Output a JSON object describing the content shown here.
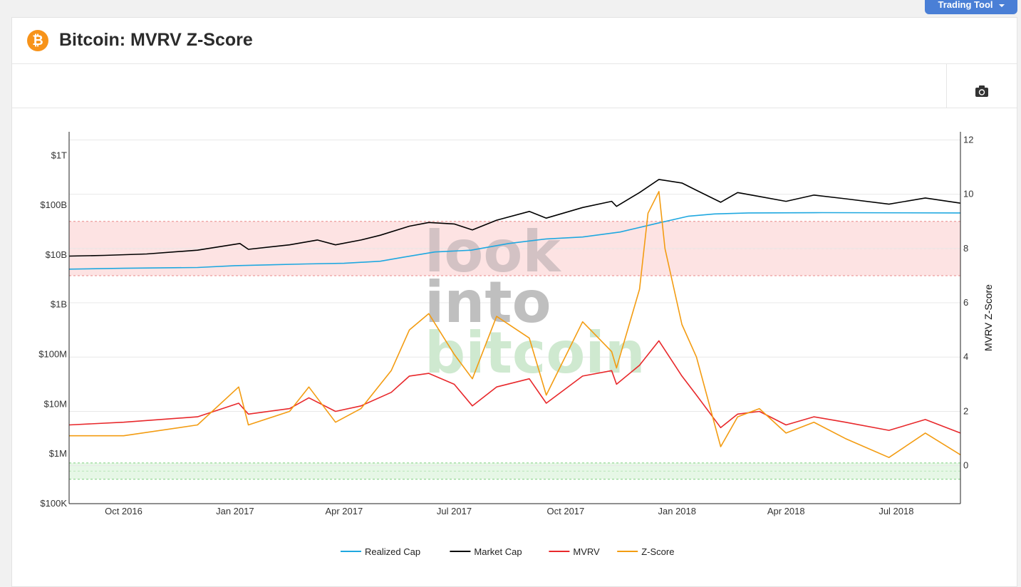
{
  "toolbar": {
    "trading_tool_label": "Trading Tool"
  },
  "header": {
    "title": "Bitcoin: MVRV Z-Score",
    "icon": "bitcoin-icon"
  },
  "watermark": {
    "line1": "look",
    "line2": "into",
    "line3": "bitcoin"
  },
  "colors": {
    "realized_cap": "#1fa8e0",
    "market_cap": "#000000",
    "mvrv": "#e8282b",
    "zscore": "#f39c12",
    "red_band": "#fde3e3",
    "green_band": "#e6f7e6"
  },
  "chart_data": {
    "type": "line",
    "x_range": [
      "2016-08-17",
      "2018-08-23"
    ],
    "x_ticks": [
      {
        "date": "2016-10-01",
        "label": "Oct 2016"
      },
      {
        "date": "2017-01-01",
        "label": "Jan 2017"
      },
      {
        "date": "2017-04-01",
        "label": "Apr 2017"
      },
      {
        "date": "2017-07-01",
        "label": "Jul 2017"
      },
      {
        "date": "2017-10-01",
        "label": "Oct 2017"
      },
      {
        "date": "2018-01-01",
        "label": "Jan 2018"
      },
      {
        "date": "2018-04-01",
        "label": "Apr 2018"
      },
      {
        "date": "2018-07-01",
        "label": "Jul 2018"
      }
    ],
    "y_left": {
      "scale": "log",
      "range": [
        100000,
        3000000000000
      ],
      "ticks": [
        {
          "value": 100000,
          "label": "$100K"
        },
        {
          "value": 1000000,
          "label": "$1M"
        },
        {
          "value": 10000000,
          "label": "$10M"
        },
        {
          "value": 100000000,
          "label": "$100M"
        },
        {
          "value": 1000000000,
          "label": "$1B"
        },
        {
          "value": 10000000000,
          "label": "$10B"
        },
        {
          "value": 100000000000,
          "label": "$100B"
        },
        {
          "value": 1000000000000,
          "label": "$1T"
        }
      ]
    },
    "y_right": {
      "title": "MVRV Z-Score",
      "range": [
        -1.4,
        12.3
      ],
      "ticks": [
        0,
        2,
        4,
        6,
        8,
        10,
        12
      ]
    },
    "bands": [
      {
        "axis": "right",
        "from": 7,
        "to": 9,
        "color": "red"
      },
      {
        "axis": "right",
        "from": -0.5,
        "to": 0.1,
        "color": "green"
      }
    ],
    "legend_position": "bottom-center",
    "series": [
      {
        "name": "Realized Cap",
        "axis": "left",
        "color_key": "realized_cap",
        "points": [
          [
            "2016-08-17",
            5200000000.0
          ],
          [
            "2016-10-01",
            5400000000.0
          ],
          [
            "2016-12-01",
            5600000000.0
          ],
          [
            "2017-01-01",
            6100000000.0
          ],
          [
            "2017-03-01",
            6600000000.0
          ],
          [
            "2017-04-01",
            6800000000.0
          ],
          [
            "2017-05-01",
            7500000000.0
          ],
          [
            "2017-05-20",
            9000000000.0
          ],
          [
            "2017-06-15",
            11500000000.0
          ],
          [
            "2017-07-15",
            12500000000.0
          ],
          [
            "2017-08-15",
            17000000000.0
          ],
          [
            "2017-09-15",
            21000000000.0
          ],
          [
            "2017-10-15",
            23000000000.0
          ],
          [
            "2017-11-15",
            29000000000.0
          ],
          [
            "2017-12-15",
            43000000000.0
          ],
          [
            "2018-01-10",
            60000000000.0
          ],
          [
            "2018-02-01",
            67000000000.0
          ],
          [
            "2018-03-01",
            70000000000.0
          ],
          [
            "2018-05-01",
            71000000000.0
          ],
          [
            "2018-08-23",
            70000000000.0
          ]
        ]
      },
      {
        "name": "Market Cap",
        "axis": "left",
        "color_key": "market_cap",
        "points": [
          [
            "2016-08-17",
            9500000000.0
          ],
          [
            "2016-09-15",
            9800000000.0
          ],
          [
            "2016-10-20",
            10500000000.0
          ],
          [
            "2016-12-01",
            12500000000.0
          ],
          [
            "2017-01-05",
            17000000000.0
          ],
          [
            "2017-01-12",
            13000000000.0
          ],
          [
            "2017-02-15",
            16000000000.0
          ],
          [
            "2017-03-10",
            20000000000.0
          ],
          [
            "2017-03-25",
            16000000000.0
          ],
          [
            "2017-04-15",
            20000000000.0
          ],
          [
            "2017-05-01",
            25000000000.0
          ],
          [
            "2017-05-25",
            38000000000.0
          ],
          [
            "2017-06-10",
            45000000000.0
          ],
          [
            "2017-07-01",
            42000000000.0
          ],
          [
            "2017-07-16",
            32000000000.0
          ],
          [
            "2017-08-05",
            50000000000.0
          ],
          [
            "2017-09-01",
            75000000000.0
          ],
          [
            "2017-09-15",
            55000000000.0
          ],
          [
            "2017-10-15",
            90000000000.0
          ],
          [
            "2017-11-08",
            120000000000.0
          ],
          [
            "2017-11-12",
            95000000000.0
          ],
          [
            "2017-12-01",
            180000000000.0
          ],
          [
            "2017-12-17",
            330000000000.0
          ],
          [
            "2018-01-05",
            280000000000.0
          ],
          [
            "2018-01-17",
            200000000000.0
          ],
          [
            "2018-02-06",
            115000000000.0
          ],
          [
            "2018-02-20",
            180000000000.0
          ],
          [
            "2018-03-10",
            150000000000.0
          ],
          [
            "2018-04-01",
            120000000000.0
          ],
          [
            "2018-04-24",
            160000000000.0
          ],
          [
            "2018-05-20",
            135000000000.0
          ],
          [
            "2018-06-25",
            105000000000.0
          ],
          [
            "2018-07-25",
            140000000000.0
          ],
          [
            "2018-08-23",
            110000000000.0
          ]
        ]
      },
      {
        "name": "MVRV",
        "axis": "right",
        "color_key": "mvrv",
        "points": [
          [
            "2016-08-17",
            1.5
          ],
          [
            "2016-10-01",
            1.6
          ],
          [
            "2016-12-01",
            1.8
          ],
          [
            "2017-01-04",
            2.3
          ],
          [
            "2017-01-12",
            1.9
          ],
          [
            "2017-02-15",
            2.1
          ],
          [
            "2017-03-03",
            2.5
          ],
          [
            "2017-03-25",
            2.0
          ],
          [
            "2017-04-15",
            2.2
          ],
          [
            "2017-05-10",
            2.7
          ],
          [
            "2017-05-25",
            3.3
          ],
          [
            "2017-06-10",
            3.4
          ],
          [
            "2017-07-01",
            3.0
          ],
          [
            "2017-07-16",
            2.2
          ],
          [
            "2017-08-05",
            2.9
          ],
          [
            "2017-09-01",
            3.2
          ],
          [
            "2017-09-15",
            2.3
          ],
          [
            "2017-10-15",
            3.3
          ],
          [
            "2017-11-08",
            3.5
          ],
          [
            "2017-11-12",
            3.0
          ],
          [
            "2017-12-01",
            3.7
          ],
          [
            "2017-12-17",
            4.6
          ],
          [
            "2018-01-05",
            3.3
          ],
          [
            "2018-01-17",
            2.6
          ],
          [
            "2018-02-06",
            1.4
          ],
          [
            "2018-02-20",
            1.9
          ],
          [
            "2018-03-10",
            2.0
          ],
          [
            "2018-04-01",
            1.5
          ],
          [
            "2018-04-24",
            1.8
          ],
          [
            "2018-05-20",
            1.6
          ],
          [
            "2018-06-25",
            1.3
          ],
          [
            "2018-07-25",
            1.7
          ],
          [
            "2018-08-23",
            1.2
          ]
        ]
      },
      {
        "name": "Z-Score",
        "axis": "right",
        "color_key": "zscore",
        "points": [
          [
            "2016-08-17",
            1.1
          ],
          [
            "2016-10-01",
            1.1
          ],
          [
            "2016-12-01",
            1.5
          ],
          [
            "2017-01-04",
            2.9
          ],
          [
            "2017-01-12",
            1.5
          ],
          [
            "2017-02-15",
            2.0
          ],
          [
            "2017-03-03",
            2.9
          ],
          [
            "2017-03-25",
            1.6
          ],
          [
            "2017-04-15",
            2.1
          ],
          [
            "2017-05-10",
            3.5
          ],
          [
            "2017-05-25",
            5.0
          ],
          [
            "2017-06-10",
            5.6
          ],
          [
            "2017-07-01",
            4.1
          ],
          [
            "2017-07-16",
            3.2
          ],
          [
            "2017-08-05",
            5.5
          ],
          [
            "2017-09-01",
            4.7
          ],
          [
            "2017-09-15",
            2.6
          ],
          [
            "2017-10-15",
            5.3
          ],
          [
            "2017-11-08",
            4.2
          ],
          [
            "2017-11-12",
            3.6
          ],
          [
            "2017-12-01",
            6.5
          ],
          [
            "2017-12-08",
            9.3
          ],
          [
            "2017-12-17",
            10.1
          ],
          [
            "2017-12-22",
            8.0
          ],
          [
            "2018-01-05",
            5.2
          ],
          [
            "2018-01-17",
            4.0
          ],
          [
            "2018-02-06",
            0.7
          ],
          [
            "2018-02-20",
            1.8
          ],
          [
            "2018-03-10",
            2.1
          ],
          [
            "2018-04-01",
            1.2
          ],
          [
            "2018-04-24",
            1.6
          ],
          [
            "2018-05-20",
            1.0
          ],
          [
            "2018-06-25",
            0.3
          ],
          [
            "2018-07-25",
            1.2
          ],
          [
            "2018-08-23",
            0.4
          ]
        ]
      }
    ]
  }
}
